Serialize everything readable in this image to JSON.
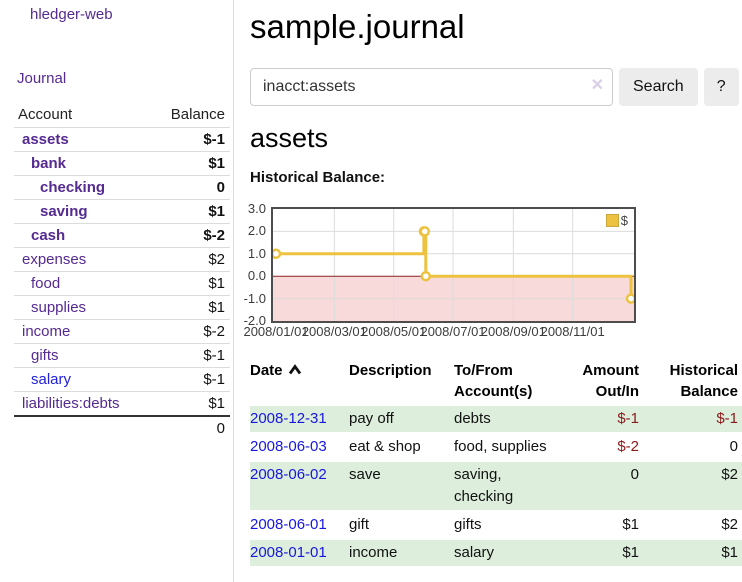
{
  "app": {
    "title": "hledger-web"
  },
  "sidebar": {
    "journal_label": "Journal",
    "accounts": {
      "header_account": "Account",
      "header_balance": "Balance",
      "rows": [
        {
          "name": "assets",
          "balance": "$-1",
          "level": 1,
          "in_query": true,
          "balance_style": "neg-strong"
        },
        {
          "name": "bank",
          "balance": "$1",
          "level": 2,
          "in_query": true,
          "balance_style": "pos"
        },
        {
          "name": "checking",
          "balance": "0",
          "level": 3,
          "in_query": true,
          "balance_style": "pos"
        },
        {
          "name": "saving",
          "balance": "$1",
          "level": 3,
          "in_query": true,
          "balance_style": "pos"
        },
        {
          "name": "cash",
          "balance": "$-2",
          "level": 2,
          "in_query": true,
          "balance_style": "neg-strong"
        },
        {
          "name": "expenses",
          "balance": "$2",
          "level": 1,
          "in_query": false,
          "balance_style": "pos"
        },
        {
          "name": "food",
          "balance": "$1",
          "level": 2,
          "in_query": false,
          "balance_style": "pos"
        },
        {
          "name": "supplies",
          "balance": "$1",
          "level": 2,
          "in_query": false,
          "balance_style": "pos"
        },
        {
          "name": "income",
          "balance": "$-2",
          "level": 1,
          "in_query": false,
          "balance_style": "neg-soft"
        },
        {
          "name": "gifts",
          "balance": "$-1",
          "level": 2,
          "in_query": false,
          "balance_style": "neg-soft"
        },
        {
          "name": "salary",
          "balance": "$-1",
          "level": 2,
          "in_query": false,
          "balance_style": "neg-soft",
          "link_style": "unvisited"
        },
        {
          "name": "liabilities:debts",
          "balance": "$1",
          "level": 1,
          "in_query": false,
          "balance_style": "pos"
        }
      ],
      "total": "0"
    }
  },
  "main": {
    "title": "sample.journal",
    "search": {
      "value": "inacct:assets",
      "clear_icon_glyph": "✕",
      "button_label": "Search",
      "help_label": "?"
    },
    "account_heading": "assets",
    "chart_label": "Historical Balance:",
    "register": {
      "sort_column": "date",
      "sort_direction": "asc",
      "headers": {
        "date": "Date",
        "description": "Description",
        "to_from": "To/From Account(s)",
        "amount": "Amount Out/In",
        "balance": "Historical Balance"
      },
      "rows": [
        {
          "date": "2008-12-31",
          "description": "pay off",
          "to_from": "debts",
          "amount": "$-1",
          "amount_neg": true,
          "balance": "$-1",
          "balance_neg": true
        },
        {
          "date": "2008-06-03",
          "description": "eat & shop",
          "to_from": "food, supplies",
          "amount": "$-2",
          "amount_neg": true,
          "balance": "0",
          "balance_neg": false
        },
        {
          "date": "2008-06-02",
          "description": "save",
          "to_from": "saving,\nchecking",
          "amount": "0",
          "amount_neg": false,
          "balance": "$2",
          "balance_neg": false
        },
        {
          "date": "2008-06-01",
          "description": "gift",
          "to_from": "gifts",
          "amount": "$1",
          "amount_neg": false,
          "balance": "$2",
          "balance_neg": false
        },
        {
          "date": "2008-01-01",
          "description": "income",
          "to_from": "salary",
          "amount": "$1",
          "amount_neg": false,
          "balance": "$1",
          "balance_neg": false
        }
      ]
    }
  },
  "chart_data": {
    "type": "line",
    "step": true,
    "title": "Historical Balance:",
    "series": [
      {
        "name": "$",
        "color": "#EDC240",
        "points": [
          [
            "2008-01-01",
            1
          ],
          [
            "2008-06-01",
            2
          ],
          [
            "2008-06-02",
            2
          ],
          [
            "2008-06-03",
            0
          ],
          [
            "2008-12-31",
            -1
          ]
        ]
      }
    ],
    "ylim": [
      -2,
      3
    ],
    "yticks": [
      "3.0",
      "2.0",
      "1.0",
      "0.0",
      "-1.0",
      "-2.0"
    ],
    "xlim": [
      "2008-01-01",
      "2009-01-01"
    ],
    "xticks": [
      "2008/01/01",
      "2008/03/01",
      "2008/05/01",
      "2008/07/01",
      "2008/09/01",
      "2008/11/01"
    ],
    "grid": true,
    "legend_position": "top-right",
    "negative_region_color": "#f9dada",
    "zero_line_color": "#8b2323"
  },
  "colors": {
    "link_purple": "#552a91",
    "link_blue": "#2222dd",
    "negative_strong": "#8b1a1a",
    "negative_soft": "#b56a6a",
    "row_green": "#ddeedd",
    "series_gold": "#EDC240"
  }
}
